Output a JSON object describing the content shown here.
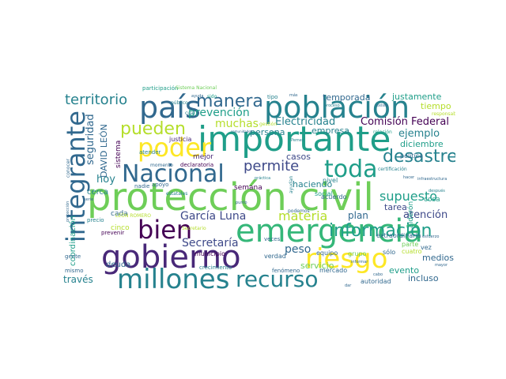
{
  "words": {
    "proteccion_civil": "protección civil",
    "importante": "importante",
    "poblacion": "población",
    "emergencia": "emergencia",
    "gobierno": "gobierno",
    "millones": "millones",
    "nacional": "Nacional",
    "integrante": "integrante",
    "pais": "país",
    "toda": "toda",
    "riesgo": "riesgo",
    "bien": "bien",
    "poder": "poder",
    "recurso": "recurso",
    "informacion": "información",
    "desastre": "desastre",
    "pueden": "pueden",
    "manera": "manera",
    "territorio": "territorio",
    "permite": "permite",
    "supuesto": "supuesto",
    "garcia_luna": "García Luna",
    "secretaria": "Secretaría",
    "materia": "materia",
    "prevencion": "prevención",
    "muchas": "muchas",
    "electricidad": "Electricidad",
    "comision_federal": "Comisión Federal",
    "ejemplo": "ejemplo",
    "diciembre": "diciembre",
    "temporada": "temporada",
    "justamente": "justamente",
    "tiempo": "tiempo",
    "seguridad": "seguridad",
    "hoy": "hoy",
    "persona": "persona",
    "empresa": "empresa",
    "peso": "peso",
    "atencion": "atención",
    "medios": "medios",
    "incluso": "incluso",
    "traves": "través",
    "servicio": "servicio",
    "evento": "evento",
    "casos": "casos",
    "haciendo": "haciendo",
    "plan": "plan",
    "tarea": "tarea",
    "cosa": "cosa",
    "david_leon": "DAVID LEÓN",
    "coordinacion": "coordinación",
    "cerca": "cerca",
    "cada": "cada",
    "cinco": "cinco",
    "deuda": "deuda",
    "municipio": "municipio",
    "semana": "semana",
    "mejor": "mejor",
    "sistema": "sistema",
    "justicia": "justicia",
    "acuerdo": "acuerdo",
    "grupo": "grupo",
    "parte": "parte",
    "equipo": "equipo",
    "social": "social",
    "nivel": "nivel",
    "politica": "política",
    "extraordinaria": "extraordinaria",
    "cuatro": "cuatro",
    "solo": "sólo",
    "vez": "vez",
    "mercado": "mercado",
    "fenomeno": "fenómeno",
    "autoridad": "autoridad",
    "verdad": "verdad",
    "veces": "veces",
    "crecimiento": "crecimiento",
    "prevenir": "prevenir",
    "precio": "precio",
    "gente": "gente",
    "mismo": "mismo",
    "atender": "atender",
    "nadie": "nadie",
    "apoyo": "apoyo",
    "momento": "momento",
    "declaratoria": "declaratoria",
    "gestion": "gestión",
    "cual": "cuál",
    "sido": "sido",
    "participacion": "participación",
    "sistema_nacional": "Sistema Nacional",
    "publico": "público",
    "tipo": "tipo",
    "responsable": "responsable",
    "certificacion": "certificación",
    "infraestructura": "infraestructura",
    "despues": "después",
    "mayor": "mayor",
    "esfuerzo": "esfuerzo",
    "dar": "dar",
    "cabo": "cabo",
    "ayudan": "ayudan",
    "practica": "práctica",
    "punto": "punto",
    "podemos": "podemos",
    "estatales": "estatales",
    "secretario": "Secretario",
    "conocer": "conocer",
    "serie": "serie",
    "proteccion_small": "protección",
    "leon_romero": "LEÓN ROMERO",
    "calderon": "Calderón",
    "hacer": "hacer",
    "comunidades": "comunidades",
    "ayuda": "ayuda",
    "informar": "informar",
    "existe": "existe",
    "proceso": "proceso",
    "relacion": "relación",
    "mas": "más",
    "pemex": "Pemex"
  },
  "colors": {
    "dark_purple": "#440154",
    "purple": "#482878",
    "indigo": "#3e4989",
    "blue": "#31688e",
    "teal_blue": "#26828e",
    "teal": "#1f9e89",
    "green": "#35b779",
    "light_green": "#6ece58",
    "lime": "#b5de2b",
    "yellow": "#fde725"
  }
}
